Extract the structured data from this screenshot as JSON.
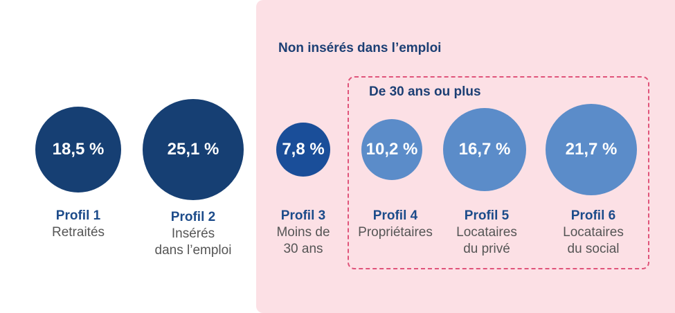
{
  "groups": {
    "non_inseres": {
      "title": "Non insérés dans l’emploi"
    },
    "trente_plus": {
      "title": "De 30 ans ou plus"
    }
  },
  "profiles": [
    {
      "name": "Profil 1",
      "desc_lines": [
        "Retraités"
      ],
      "value": "18,5 %",
      "color": "#163f73"
    },
    {
      "name": "Profil 2",
      "desc_lines": [
        "Insérés",
        "dans l’emploi"
      ],
      "value": "25,1 %",
      "color": "#163f73"
    },
    {
      "name": "Profil 3",
      "desc_lines": [
        "Moins de",
        "30 ans"
      ],
      "value": "7,8 %",
      "color": "#1a4e99"
    },
    {
      "name": "Profil 4",
      "desc_lines": [
        "Propriétaires"
      ],
      "value": "10,2 %",
      "color": "#5b8cc9"
    },
    {
      "name": "Profil 5",
      "desc_lines": [
        "Locataires",
        "du privé"
      ],
      "value": "16,7 %",
      "color": "#5b8cc9"
    },
    {
      "name": "Profil 6",
      "desc_lines": [
        "Locataires",
        "du social"
      ],
      "value": "21,7 %",
      "color": "#5b8cc9"
    }
  ]
}
